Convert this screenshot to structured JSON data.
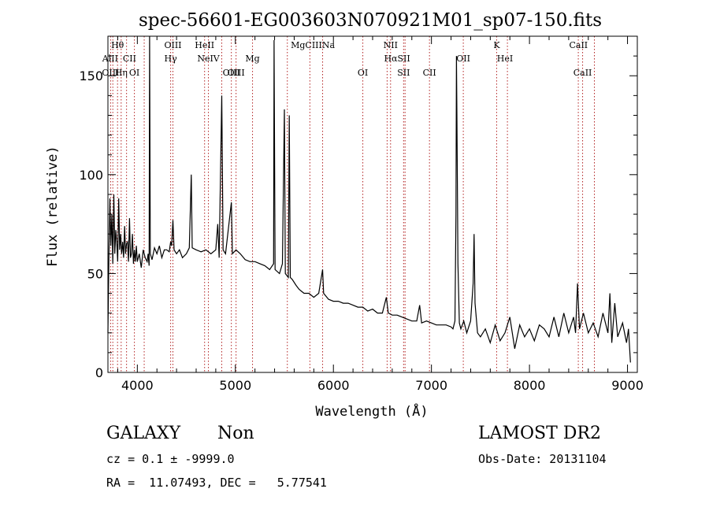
{
  "chart_data": {
    "type": "line",
    "title": "spec-56601-EG003603N070921M01_sp07-150.fits",
    "xlabel": "Wavelength (Å)",
    "ylabel": "Flux (relative)",
    "xlim": [
      3700,
      9100
    ],
    "ylim": [
      0,
      170
    ],
    "xticks": [
      4000,
      5000,
      6000,
      7000,
      8000,
      9000
    ],
    "yticks": [
      0,
      50,
      100,
      150
    ],
    "grid": false,
    "series": [
      {
        "points": [
          [
            3700,
            20
          ],
          [
            3710,
            58
          ],
          [
            3720,
            88
          ],
          [
            3730,
            64
          ],
          [
            3740,
            80
          ],
          [
            3750,
            55
          ],
          [
            3760,
            90
          ],
          [
            3770,
            60
          ],
          [
            3780,
            72
          ],
          [
            3790,
            66
          ],
          [
            3800,
            56
          ],
          [
            3810,
            88
          ],
          [
            3820,
            62
          ],
          [
            3830,
            70
          ],
          [
            3840,
            60
          ],
          [
            3850,
            66
          ],
          [
            3860,
            58
          ],
          [
            3870,
            74
          ],
          [
            3880,
            60
          ],
          [
            3890,
            65
          ],
          [
            3900,
            66
          ],
          [
            3910,
            56
          ],
          [
            3920,
            78
          ],
          [
            3930,
            58
          ],
          [
            3940,
            60
          ],
          [
            3950,
            70
          ],
          [
            3960,
            55
          ],
          [
            3970,
            62
          ],
          [
            3980,
            56
          ],
          [
            3990,
            64
          ],
          [
            4000,
            56
          ],
          [
            4020,
            60
          ],
          [
            4040,
            53
          ],
          [
            4060,
            62
          ],
          [
            4080,
            58
          ],
          [
            4100,
            56
          ],
          [
            4110,
            60
          ],
          [
            4120,
            54
          ],
          [
            4125,
            170
          ],
          [
            4132,
            60
          ],
          [
            4150,
            57
          ],
          [
            4175,
            63
          ],
          [
            4200,
            60
          ],
          [
            4225,
            64
          ],
          [
            4250,
            58
          ],
          [
            4275,
            62
          ],
          [
            4300,
            62
          ],
          [
            4325,
            61
          ],
          [
            4340,
            66
          ],
          [
            4350,
            64
          ],
          [
            4363,
            77
          ],
          [
            4375,
            62
          ],
          [
            4400,
            60
          ],
          [
            4430,
            62
          ],
          [
            4460,
            58
          ],
          [
            4500,
            60
          ],
          [
            4530,
            63
          ],
          [
            4550,
            100
          ],
          [
            4560,
            63
          ],
          [
            4600,
            62
          ],
          [
            4650,
            61
          ],
          [
            4700,
            62
          ],
          [
            4750,
            60
          ],
          [
            4800,
            62
          ],
          [
            4820,
            75
          ],
          [
            4835,
            58
          ],
          [
            4861,
            140
          ],
          [
            4875,
            62
          ],
          [
            4900,
            60
          ],
          [
            4959,
            86
          ],
          [
            4970,
            60
          ],
          [
            5007,
            62
          ],
          [
            5050,
            60
          ],
          [
            5100,
            57
          ],
          [
            5150,
            56
          ],
          [
            5200,
            56
          ],
          [
            5250,
            55
          ],
          [
            5300,
            54
          ],
          [
            5350,
            52
          ],
          [
            5390,
            55
          ],
          [
            5395,
            168
          ],
          [
            5405,
            52
          ],
          [
            5450,
            50
          ],
          [
            5480,
            55
          ],
          [
            5500,
            133
          ],
          [
            5510,
            50
          ],
          [
            5540,
            48
          ],
          [
            5550,
            130
          ],
          [
            5560,
            48
          ],
          [
            5580,
            47
          ],
          [
            5620,
            44
          ],
          [
            5650,
            42
          ],
          [
            5700,
            40
          ],
          [
            5750,
            40
          ],
          [
            5800,
            38
          ],
          [
            5850,
            40
          ],
          [
            5890,
            52
          ],
          [
            5900,
            40
          ],
          [
            5950,
            37
          ],
          [
            6000,
            36
          ],
          [
            6050,
            36
          ],
          [
            6100,
            35
          ],
          [
            6150,
            35
          ],
          [
            6200,
            34
          ],
          [
            6250,
            33
          ],
          [
            6300,
            33
          ],
          [
            6350,
            31
          ],
          [
            6400,
            32
          ],
          [
            6450,
            30
          ],
          [
            6500,
            30
          ],
          [
            6540,
            38
          ],
          [
            6560,
            30
          ],
          [
            6600,
            29
          ],
          [
            6650,
            29
          ],
          [
            6700,
            28
          ],
          [
            6750,
            27
          ],
          [
            6800,
            26
          ],
          [
            6850,
            26
          ],
          [
            6880,
            34
          ],
          [
            6900,
            25
          ],
          [
            6950,
            26
          ],
          [
            7000,
            25
          ],
          [
            7050,
            24
          ],
          [
            7100,
            24
          ],
          [
            7150,
            24
          ],
          [
            7200,
            23
          ],
          [
            7220,
            22
          ],
          [
            7240,
            26
          ],
          [
            7250,
            80
          ],
          [
            7255,
            160
          ],
          [
            7260,
            130
          ],
          [
            7270,
            55
          ],
          [
            7285,
            25
          ],
          [
            7300,
            22
          ],
          [
            7330,
            26
          ],
          [
            7360,
            20
          ],
          [
            7400,
            26
          ],
          [
            7425,
            45
          ],
          [
            7435,
            70
          ],
          [
            7445,
            35
          ],
          [
            7470,
            20
          ],
          [
            7500,
            18
          ],
          [
            7550,
            22
          ],
          [
            7600,
            15
          ],
          [
            7650,
            24
          ],
          [
            7700,
            16
          ],
          [
            7750,
            20
          ],
          [
            7800,
            28
          ],
          [
            7850,
            12
          ],
          [
            7900,
            24
          ],
          [
            7950,
            18
          ],
          [
            8000,
            22
          ],
          [
            8050,
            16
          ],
          [
            8100,
            24
          ],
          [
            8150,
            22
          ],
          [
            8200,
            18
          ],
          [
            8250,
            28
          ],
          [
            8300,
            18
          ],
          [
            8350,
            30
          ],
          [
            8400,
            20
          ],
          [
            8450,
            28
          ],
          [
            8470,
            20
          ],
          [
            8490,
            45
          ],
          [
            8510,
            22
          ],
          [
            8550,
            30
          ],
          [
            8600,
            20
          ],
          [
            8650,
            25
          ],
          [
            8700,
            18
          ],
          [
            8750,
            30
          ],
          [
            8800,
            20
          ],
          [
            8820,
            40
          ],
          [
            8840,
            15
          ],
          [
            8870,
            35
          ],
          [
            8900,
            18
          ],
          [
            8950,
            25
          ],
          [
            8990,
            15
          ],
          [
            9010,
            22
          ],
          [
            9030,
            5
          ]
        ]
      }
    ],
    "line_markers": [
      {
        "label": "Hθ",
        "x": 3798,
        "row": 1
      },
      {
        "label": "AlII",
        "x": 3723,
        "row": 2
      },
      {
        "label": "OIII",
        "x": 3727,
        "row": 3
      },
      {
        "label": "Hη",
        "x": 3835,
        "row": 3
      },
      {
        "label": "CII",
        "x": 3920,
        "row": 2
      },
      {
        "label": "OI",
        "x": 3970,
        "row": 3
      },
      {
        "label": "OIII",
        "x": 4363,
        "row": 1
      },
      {
        "label": "Hγ",
        "x": 4340,
        "row": 2
      },
      {
        "label": "HeII",
        "x": 4686,
        "row": 1
      },
      {
        "label": "NeIV",
        "x": 4725,
        "row": 2
      },
      {
        "label": "OIII",
        "x": 4959,
        "row": 3
      },
      {
        "label": "OIII",
        "x": 5007,
        "row": 3
      },
      {
        "label": "Mg",
        "x": 5175,
        "row": 2
      },
      {
        "label": "MgCIIINa",
        "x": 5790,
        "row": 1
      },
      {
        "label": "OI",
        "x": 6300,
        "row": 3
      },
      {
        "label": "NII",
        "x": 6583,
        "row": 1
      },
      {
        "label": "HαSII",
        "x": 6650,
        "row": 2
      },
      {
        "label": "SII",
        "x": 6716,
        "row": 3
      },
      {
        "label": "CII",
        "x": 6980,
        "row": 3
      },
      {
        "label": "OII",
        "x": 7325,
        "row": 2
      },
      {
        "label": "K",
        "x": 7665,
        "row": 1
      },
      {
        "label": "HeI",
        "x": 7750,
        "row": 2
      },
      {
        "label": "CaII",
        "x": 8500,
        "row": 1
      },
      {
        "label": "CaII",
        "x": 8542,
        "row": 3
      }
    ],
    "marker_lines_x": [
      3727,
      3750,
      3798,
      3835,
      3890,
      3970,
      4070,
      4340,
      4363,
      4686,
      4725,
      4861,
      4959,
      5007,
      5175,
      5530,
      5760,
      5890,
      6300,
      6548,
      6583,
      6716,
      6731,
      6980,
      7325,
      7665,
      7775,
      8498,
      8542,
      8662
    ]
  },
  "info": {
    "object_type": "GALAXY",
    "subclass": "Non",
    "survey": "LAMOST DR2",
    "redshift_line": "cz = 0.1 ± -9999.0",
    "obs_date": "Obs-Date: 20131104",
    "coords": "RA =  11.07493, DEC =   5.77541"
  }
}
